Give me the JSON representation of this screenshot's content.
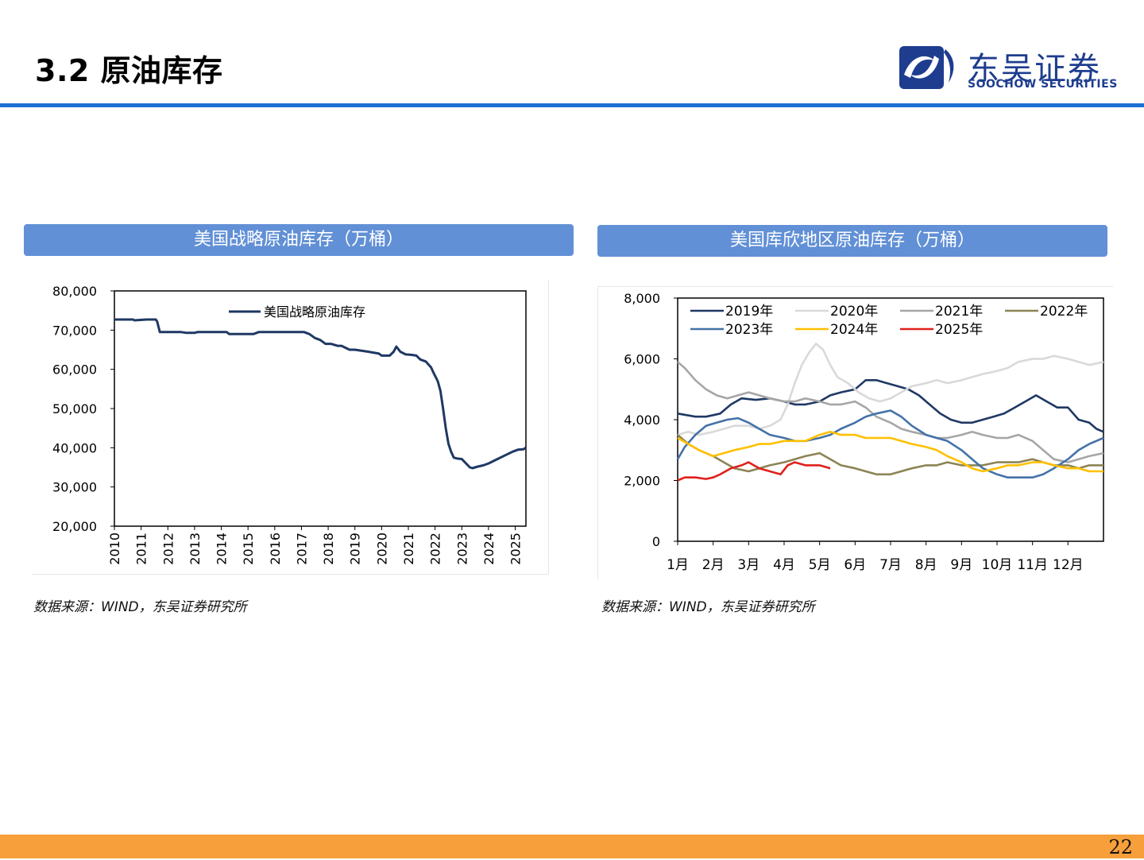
{
  "header": {
    "title": "3.2 原油库存",
    "logo_cn": "东吴证券",
    "logo_en": "SOOCHOW SECURITIES",
    "accent": "#1d6fd1",
    "logo_color": "#1e3d8f"
  },
  "panels": {
    "left_title": "美国战略原油库存（万桶）",
    "right_title": "美国库欣地区原油库存（万桶）",
    "left_source": "数据来源：WIND，东吴证券研究所",
    "right_source": "数据来源：WIND，东吴证券研究所",
    "banner_color": "#6190d6"
  },
  "footer": {
    "page_number": "22",
    "bar_color": "#f7a03b"
  },
  "chart_data": [
    {
      "type": "line",
      "title": "美国战略原油库存（万桶）",
      "ylim": [
        20000,
        80000
      ],
      "yticks": [
        20000,
        30000,
        40000,
        50000,
        60000,
        70000,
        80000
      ],
      "ytick_labels": [
        "20,000",
        "30,000",
        "40,000",
        "50,000",
        "60,000",
        "70,000",
        "80,000"
      ],
      "xlim": [
        2010,
        2025.4
      ],
      "xtick_labels": [
        "2010",
        "2011",
        "2012",
        "2013",
        "2014",
        "2015",
        "2016",
        "2017",
        "2018",
        "2019",
        "2020",
        "2021",
        "2022",
        "2023",
        "2024",
        "2025"
      ],
      "legend": "top-center",
      "series": [
        {
          "name": "美国战略原油库存",
          "color": "#1f3864",
          "x": [
            2010.0,
            2010.7,
            2010.75,
            2011.2,
            2011.55,
            2011.6,
            2011.7,
            2012.5,
            2012.7,
            2013.0,
            2013.1,
            2014.2,
            2014.3,
            2015.2,
            2015.4,
            2016.8,
            2017.1,
            2017.3,
            2017.5,
            2017.7,
            2017.9,
            2018.1,
            2018.35,
            2018.5,
            2018.8,
            2019.0,
            2019.3,
            2019.5,
            2019.9,
            2020.0,
            2020.3,
            2020.45,
            2020.55,
            2020.7,
            2020.9,
            2021.1,
            2021.3,
            2021.45,
            2021.65,
            2021.85,
            2021.95,
            2022.1,
            2022.2,
            2022.3,
            2022.4,
            2022.5,
            2022.6,
            2022.7,
            2022.8,
            2022.9,
            2023.0,
            2023.3,
            2023.4,
            2023.6,
            2023.8,
            2024.0,
            2024.3,
            2024.6,
            2024.9,
            2025.1,
            2025.3,
            2025.4
          ],
          "y": [
            72700,
            72700,
            72500,
            72700,
            72700,
            72200,
            69500,
            69500,
            69300,
            69300,
            69500,
            69500,
            69000,
            69000,
            69500,
            69500,
            69500,
            69000,
            68000,
            67500,
            66500,
            66500,
            66000,
            66000,
            65000,
            65000,
            64700,
            64500,
            64000,
            63500,
            63500,
            64500,
            65800,
            64500,
            63800,
            63700,
            63500,
            62500,
            62000,
            60500,
            59000,
            57000,
            54500,
            50000,
            45000,
            41000,
            39000,
            37500,
            37300,
            37200,
            37100,
            35000,
            34800,
            35200,
            35500,
            36000,
            37000,
            38000,
            39000,
            39500,
            39600,
            40000
          ]
        }
      ]
    },
    {
      "type": "line",
      "title": "美国库欣地区原油库存（万桶）",
      "ylim": [
        0,
        8000
      ],
      "yticks": [
        0,
        2000,
        4000,
        6000,
        8000
      ],
      "ytick_labels": [
        "0",
        "2,000",
        "4,000",
        "6,000",
        "8,000"
      ],
      "xlim": [
        1,
        13
      ],
      "xtick_labels": [
        "1月",
        "2月",
        "3月",
        "4月",
        "5月",
        "6月",
        "7月",
        "8月",
        "9月",
        "10月",
        "11月",
        "12月"
      ],
      "legend": "top-left",
      "series": [
        {
          "name": "2019年",
          "color": "#1f3864",
          "x": [
            1,
            1.5,
            1.8,
            2,
            2.2,
            2.5,
            2.8,
            3.2,
            3.6,
            4,
            4.3,
            4.6,
            5,
            5.3,
            5.6,
            6,
            6.3,
            6.6,
            6.9,
            7.2,
            7.5,
            7.8,
            8.1,
            8.4,
            8.7,
            9,
            9.3,
            9.6,
            9.9,
            10.2,
            10.5,
            10.8,
            11.1,
            11.4,
            11.7,
            12,
            12.3,
            12.6,
            12.8,
            13
          ],
          "y": [
            4200,
            4100,
            4100,
            4150,
            4200,
            4500,
            4700,
            4650,
            4700,
            4600,
            4500,
            4500,
            4600,
            4800,
            4900,
            5000,
            5300,
            5300,
            5200,
            5100,
            5000,
            4800,
            4500,
            4200,
            4000,
            3900,
            3900,
            4000,
            4100,
            4200,
            4400,
            4600,
            4800,
            4600,
            4400,
            4400,
            4000,
            3900,
            3700,
            3600
          ]
        },
        {
          "name": "2020年",
          "color": "#d9d9d9",
          "x": [
            1,
            1.3,
            1.6,
            2,
            2.3,
            2.6,
            3,
            3.3,
            3.6,
            3.9,
            4.1,
            4.3,
            4.5,
            4.7,
            4.9,
            5.1,
            5.3,
            5.5,
            5.8,
            6.1,
            6.4,
            6.7,
            7,
            7.3,
            7.6,
            8,
            8.3,
            8.6,
            9,
            9.3,
            9.6,
            10,
            10.3,
            10.6,
            11,
            11.3,
            11.6,
            12,
            12.3,
            12.6,
            13
          ],
          "y": [
            3500,
            3600,
            3500,
            3600,
            3700,
            3800,
            3800,
            3700,
            3800,
            4000,
            4500,
            5200,
            5800,
            6200,
            6500,
            6300,
            5800,
            5400,
            5200,
            4900,
            4700,
            4600,
            4700,
            4900,
            5100,
            5200,
            5300,
            5200,
            5300,
            5400,
            5500,
            5600,
            5700,
            5900,
            6000,
            6000,
            6100,
            6000,
            5900,
            5800,
            5900
          ]
        },
        {
          "name": "2021年",
          "color": "#a6a6a6",
          "x": [
            1,
            1.2,
            1.5,
            1.8,
            2.1,
            2.4,
            2.7,
            3,
            3.3,
            3.6,
            4,
            4.3,
            4.6,
            5,
            5.3,
            5.6,
            6,
            6.3,
            6.6,
            7,
            7.3,
            7.6,
            8,
            8.3,
            8.6,
            9,
            9.3,
            9.6,
            10,
            10.3,
            10.6,
            11,
            11.3,
            11.6,
            12,
            12.3,
            12.6,
            13
          ],
          "y": [
            5900,
            5700,
            5300,
            5000,
            4800,
            4700,
            4800,
            4900,
            4800,
            4700,
            4600,
            4600,
            4700,
            4600,
            4500,
            4500,
            4600,
            4400,
            4100,
            3900,
            3700,
            3600,
            3500,
            3400,
            3400,
            3500,
            3600,
            3500,
            3400,
            3400,
            3500,
            3300,
            3000,
            2700,
            2600,
            2700,
            2800,
            2900
          ]
        },
        {
          "name": "2022年",
          "color": "#8c8455",
          "x": [
            1,
            1.3,
            1.6,
            2,
            2.3,
            2.6,
            3,
            3.3,
            3.6,
            4,
            4.3,
            4.6,
            5,
            5.3,
            5.6,
            6,
            6.3,
            6.6,
            7,
            7.3,
            7.6,
            8,
            8.3,
            8.6,
            9,
            9.3,
            9.6,
            10,
            10.3,
            10.6,
            11,
            11.3,
            11.6,
            12,
            12.3,
            12.6,
            13
          ],
          "y": [
            3500,
            3200,
            3000,
            2800,
            2600,
            2400,
            2300,
            2400,
            2500,
            2600,
            2700,
            2800,
            2900,
            2700,
            2500,
            2400,
            2300,
            2200,
            2200,
            2300,
            2400,
            2500,
            2500,
            2600,
            2500,
            2500,
            2500,
            2600,
            2600,
            2600,
            2700,
            2600,
            2500,
            2500,
            2400,
            2500,
            2500
          ]
        },
        {
          "name": "2023年",
          "color": "#4472a8",
          "x": [
            1,
            1.2,
            1.5,
            1.8,
            2.1,
            2.4,
            2.7,
            3,
            3.3,
            3.6,
            4,
            4.3,
            4.6,
            5,
            5.3,
            5.6,
            6,
            6.3,
            6.6,
            7,
            7.3,
            7.6,
            8,
            8.3,
            8.6,
            9,
            9.3,
            9.6,
            10,
            10.3,
            10.6,
            11,
            11.3,
            11.6,
            12,
            12.3,
            12.6,
            13
          ],
          "y": [
            2700,
            3100,
            3500,
            3800,
            3900,
            4000,
            4050,
            3900,
            3700,
            3500,
            3400,
            3300,
            3300,
            3400,
            3500,
            3700,
            3900,
            4100,
            4200,
            4300,
            4100,
            3800,
            3500,
            3400,
            3300,
            3000,
            2700,
            2400,
            2200,
            2100,
            2100,
            2100,
            2200,
            2400,
            2700,
            3000,
            3200,
            3400
          ]
        },
        {
          "name": "2024年",
          "color": "#ffc000",
          "x": [
            1,
            1.3,
            1.6,
            2,
            2.3,
            2.6,
            3,
            3.3,
            3.6,
            4,
            4.3,
            4.6,
            5,
            5.3,
            5.6,
            6,
            6.3,
            6.6,
            7,
            7.3,
            7.6,
            8,
            8.3,
            8.6,
            9,
            9.3,
            9.6,
            10,
            10.3,
            10.6,
            11,
            11.3,
            11.6,
            12,
            12.3,
            12.6,
            13
          ],
          "y": [
            3400,
            3200,
            3000,
            2800,
            2900,
            3000,
            3100,
            3200,
            3200,
            3300,
            3300,
            3300,
            3500,
            3600,
            3500,
            3500,
            3400,
            3400,
            3400,
            3300,
            3200,
            3100,
            3000,
            2800,
            2600,
            2400,
            2300,
            2400,
            2500,
            2500,
            2600,
            2600,
            2500,
            2400,
            2400,
            2300,
            2300
          ]
        },
        {
          "name": "2025年",
          "color": "#e0201b",
          "x": [
            1,
            1.2,
            1.5,
            1.8,
            2,
            2.2,
            2.5,
            2.8,
            3,
            3.3,
            3.6,
            3.9,
            4.1,
            4.3,
            4.6,
            5,
            5.3
          ],
          "y": [
            2000,
            2100,
            2100,
            2050,
            2100,
            2200,
            2400,
            2500,
            2600,
            2400,
            2300,
            2200,
            2500,
            2600,
            2500,
            2500,
            2400
          ]
        }
      ]
    }
  ]
}
